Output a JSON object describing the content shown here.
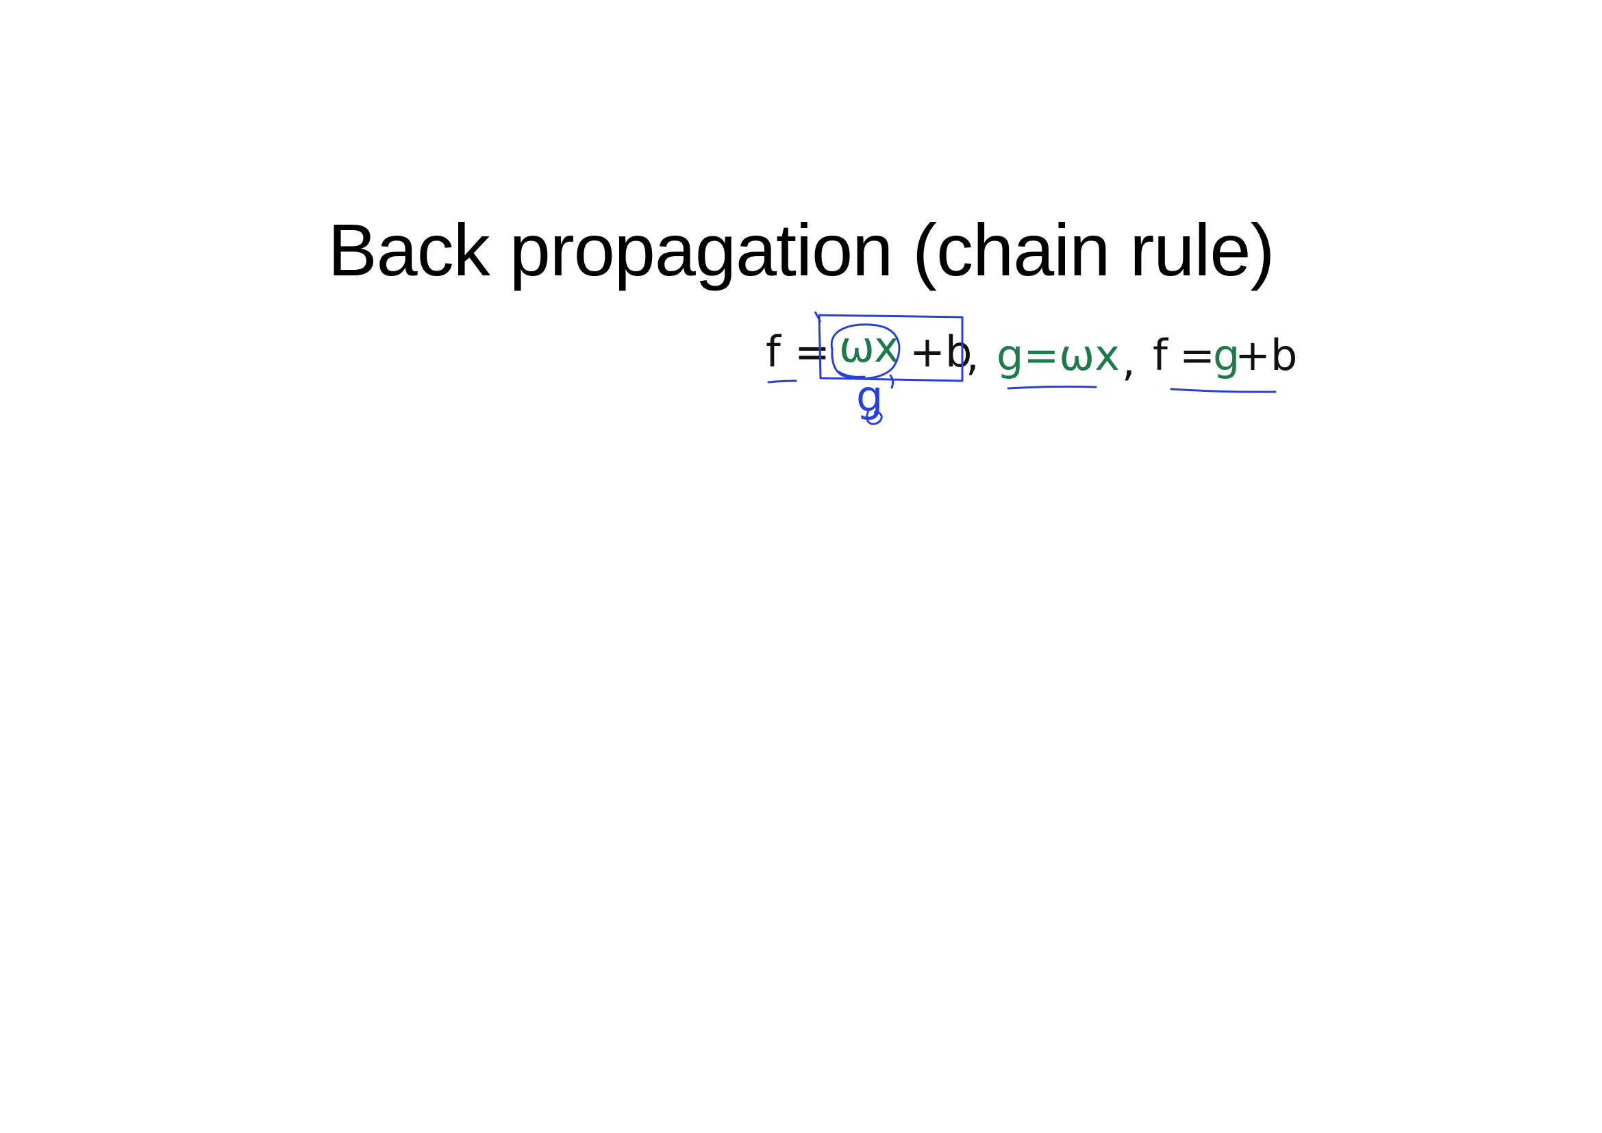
{
  "slide": {
    "title": "Back propagation (chain rule)"
  },
  "annotations": {
    "colors": {
      "black": "#111111",
      "green": "#1f7a4a",
      "blue": "#2a3fd6"
    },
    "eq1": {
      "lhs": "f",
      "eq": "=",
      "w": "ω",
      "x": "x",
      "rest": "+b",
      "comma": ","
    },
    "brace_label": "g",
    "eq2": {
      "text": "g=ωx",
      "comma": ","
    },
    "eq3": {
      "lhs": "f",
      "eq": "=",
      "g": "g",
      "rest": "+b"
    }
  }
}
